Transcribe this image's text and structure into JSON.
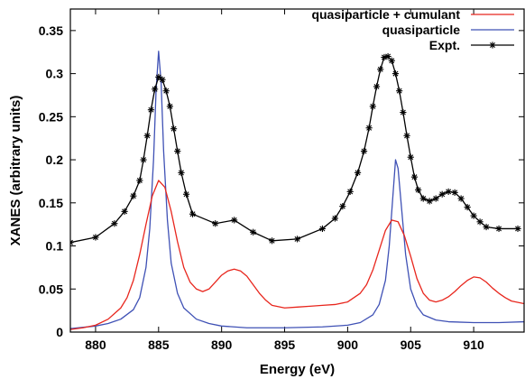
{
  "chart_data": {
    "type": "line",
    "xlabel": "Energy (eV)",
    "ylabel": "XANES (arbitrary units)",
    "xlim": [
      878,
      914
    ],
    "ylim": [
      0,
      0.375
    ],
    "x_ticks": [
      "880",
      "885",
      "890",
      "895",
      "900",
      "905",
      "910"
    ],
    "y_ticks": [
      "0",
      "0.05",
      "0.1",
      "0.15",
      "0.2",
      "0.25",
      "0.3",
      "0.35"
    ],
    "x_tick_values": [
      880,
      885,
      890,
      895,
      900,
      905,
      910
    ],
    "y_tick_values": [
      0,
      0.05,
      0.1,
      0.15,
      0.2,
      0.25,
      0.3,
      0.35
    ],
    "grid": false,
    "legend_position": "top-right",
    "series": [
      {
        "name": "quasiparticle + cumulant",
        "color": "#e8261d",
        "marker": "none",
        "x": [
          878,
          879,
          880,
          881,
          882,
          882.5,
          883,
          883.5,
          884,
          884.5,
          885,
          885.5,
          886,
          886.5,
          887,
          887.5,
          888,
          888.5,
          889,
          889.5,
          890,
          890.5,
          891,
          891.5,
          892,
          892.5,
          893,
          893.5,
          894,
          895,
          896,
          897,
          898,
          899,
          900,
          901,
          901.5,
          902,
          902.5,
          903,
          903.5,
          904,
          904.5,
          905,
          905.5,
          906,
          906.5,
          907,
          907.5,
          908,
          908.5,
          909,
          909.5,
          910,
          910.5,
          911,
          911.5,
          912,
          912.5,
          913,
          914
        ],
        "y": [
          0.003,
          0.005,
          0.008,
          0.015,
          0.028,
          0.04,
          0.06,
          0.09,
          0.125,
          0.158,
          0.176,
          0.168,
          0.14,
          0.105,
          0.075,
          0.058,
          0.05,
          0.047,
          0.05,
          0.058,
          0.066,
          0.071,
          0.073,
          0.071,
          0.065,
          0.055,
          0.045,
          0.037,
          0.031,
          0.028,
          0.029,
          0.03,
          0.031,
          0.032,
          0.035,
          0.045,
          0.055,
          0.072,
          0.095,
          0.118,
          0.13,
          0.128,
          0.112,
          0.088,
          0.062,
          0.045,
          0.037,
          0.035,
          0.037,
          0.041,
          0.047,
          0.054,
          0.06,
          0.064,
          0.063,
          0.058,
          0.051,
          0.045,
          0.04,
          0.036,
          0.033
        ]
      },
      {
        "name": "quasiparticle",
        "color": "#3f51b5",
        "marker": "none",
        "x": [
          878,
          880,
          881,
          882,
          883,
          883.5,
          884,
          884.3,
          884.6,
          884.8,
          885,
          885.2,
          885.4,
          885.7,
          886,
          886.5,
          887,
          888,
          889,
          890,
          892,
          895,
          898,
          900,
          901,
          902,
          902.5,
          903,
          903.3,
          903.6,
          903.8,
          904,
          904.3,
          904.6,
          905,
          905.5,
          906,
          907,
          908,
          910,
          912,
          914
        ],
        "y": [
          0.004,
          0.007,
          0.01,
          0.015,
          0.026,
          0.04,
          0.075,
          0.12,
          0.2,
          0.28,
          0.326,
          0.29,
          0.21,
          0.13,
          0.08,
          0.045,
          0.028,
          0.015,
          0.01,
          0.007,
          0.005,
          0.005,
          0.006,
          0.008,
          0.011,
          0.02,
          0.032,
          0.06,
          0.1,
          0.16,
          0.2,
          0.19,
          0.14,
          0.09,
          0.05,
          0.03,
          0.02,
          0.014,
          0.012,
          0.011,
          0.011,
          0.012
        ]
      },
      {
        "name": "Expt.",
        "color": "#000000",
        "marker": "asterisk",
        "x": [
          878,
          880,
          881.5,
          882.3,
          883,
          883.5,
          883.8,
          884.1,
          884.4,
          884.7,
          885,
          885.3,
          885.6,
          885.9,
          886.2,
          886.5,
          886.8,
          887.2,
          887.7,
          889.5,
          891,
          892.5,
          894,
          896,
          898,
          899,
          899.6,
          900.2,
          900.8,
          901.3,
          901.7,
          902,
          902.3,
          902.6,
          902.9,
          903.2,
          903.5,
          903.8,
          904.1,
          904.4,
          904.7,
          905,
          905.3,
          905.6,
          906,
          906.5,
          907,
          907.5,
          908,
          908.5,
          909,
          909.5,
          910,
          910.5,
          911,
          912,
          913.5
        ],
        "y": [
          0.104,
          0.11,
          0.126,
          0.14,
          0.158,
          0.176,
          0.2,
          0.228,
          0.258,
          0.282,
          0.296,
          0.293,
          0.28,
          0.262,
          0.236,
          0.21,
          0.185,
          0.16,
          0.137,
          0.126,
          0.13,
          0.116,
          0.106,
          0.108,
          0.12,
          0.132,
          0.146,
          0.163,
          0.185,
          0.21,
          0.237,
          0.262,
          0.285,
          0.305,
          0.319,
          0.32,
          0.315,
          0.3,
          0.28,
          0.255,
          0.228,
          0.203,
          0.18,
          0.165,
          0.155,
          0.152,
          0.155,
          0.16,
          0.163,
          0.162,
          0.155,
          0.145,
          0.135,
          0.128,
          0.122,
          0.12,
          0.12
        ]
      }
    ]
  }
}
